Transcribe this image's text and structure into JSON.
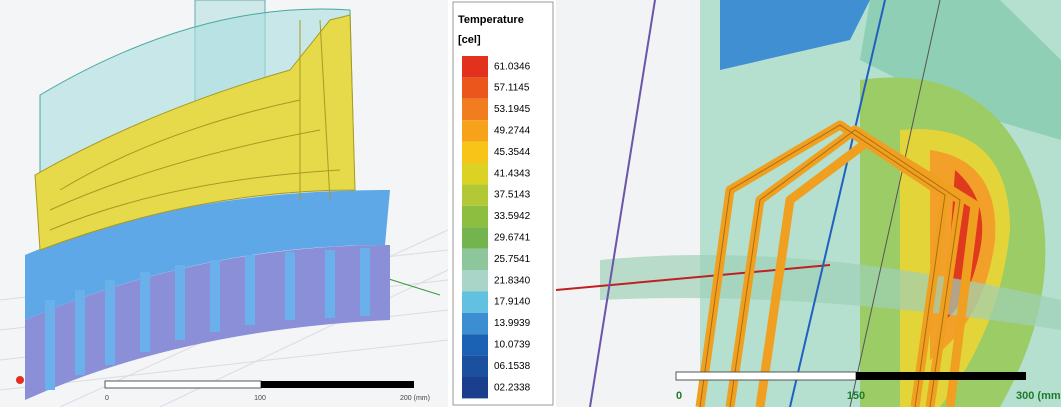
{
  "left_view": {
    "scale_labels": [
      "0",
      "100",
      "200 (mm)"
    ]
  },
  "legend": {
    "title": "Temperature",
    "unit": "[cel]",
    "items": [
      {
        "label": "61.0346",
        "color": "#e2321e"
      },
      {
        "label": "57.1145",
        "color": "#eb561c"
      },
      {
        "label": "53.1945",
        "color": "#f27d1e"
      },
      {
        "label": "49.2744",
        "color": "#f6a21a"
      },
      {
        "label": "45.3544",
        "color": "#f8c418"
      },
      {
        "label": "41.4343",
        "color": "#dcd224"
      },
      {
        "label": "37.5143",
        "color": "#b2c935"
      },
      {
        "label": "33.5942",
        "color": "#8dbe40"
      },
      {
        "label": "29.6741",
        "color": "#74b44e"
      },
      {
        "label": "25.7541",
        "color": "#8cc69a"
      },
      {
        "label": "21.8340",
        "color": "#a9d5c8"
      },
      {
        "label": "17.9140",
        "color": "#62c0e0"
      },
      {
        "label": "13.9939",
        "color": "#3b8ed2"
      },
      {
        "label": "10.0739",
        "color": "#1c62b4"
      },
      {
        "label": "06.1538",
        "color": "#1a509e"
      },
      {
        "label": "02.2338",
        "color": "#1b3f8c"
      }
    ]
  },
  "right_view": {
    "scale_labels": [
      "0",
      "150",
      "300 (mm"
    ]
  }
}
